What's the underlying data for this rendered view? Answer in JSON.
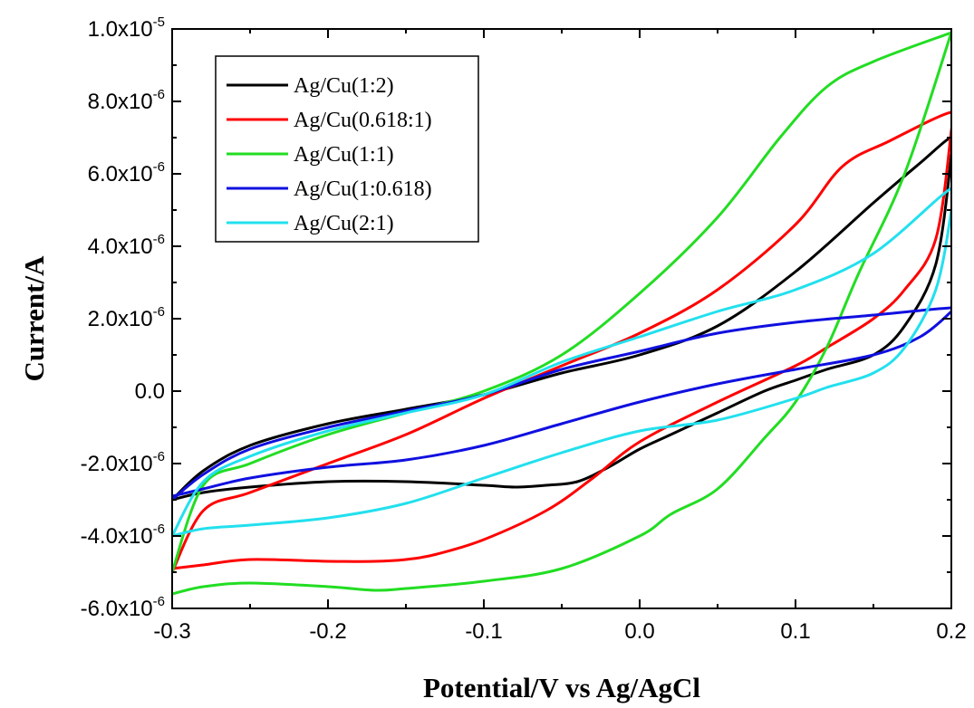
{
  "chart_data": {
    "type": "line",
    "xlabel": "Potential/V vs Ag/AgCl",
    "ylabel": "Current/A",
    "xlim": [
      -0.3,
      0.2
    ],
    "ylim": [
      -6e-06,
      1e-05
    ],
    "x_ticks": [
      {
        "value": -0.3,
        "label": "-0.3"
      },
      {
        "value": -0.2,
        "label": "-0.2"
      },
      {
        "value": -0.1,
        "label": "-0.1"
      },
      {
        "value": 0.0,
        "label": "0.0"
      },
      {
        "value": 0.1,
        "label": "0.1"
      },
      {
        "value": 0.2,
        "label": "0.2"
      }
    ],
    "y_ticks": [
      {
        "value": 1e-05,
        "mantissa": "1.0x10",
        "exp": "-5"
      },
      {
        "value": 8e-06,
        "mantissa": "8.0x10",
        "exp": "-6"
      },
      {
        "value": 6e-06,
        "mantissa": "6.0x10",
        "exp": "-6"
      },
      {
        "value": 4e-06,
        "mantissa": "4.0x10",
        "exp": "-6"
      },
      {
        "value": 2e-06,
        "mantissa": "2.0x10",
        "exp": "-6"
      },
      {
        "value": 0,
        "mantissa": "0.0",
        "exp": ""
      },
      {
        "value": -2e-06,
        "mantissa": "-2.0x10",
        "exp": "-6"
      },
      {
        "value": -4e-06,
        "mantissa": "-4.0x10",
        "exp": "-6"
      },
      {
        "value": -6e-06,
        "mantissa": "-6.0x10",
        "exp": "-6"
      }
    ],
    "legend_position": "top-left",
    "grid": false,
    "series": [
      {
        "name": "Ag/Cu(1:2)",
        "color": "#000000",
        "x": [
          -0.3,
          -0.28,
          -0.25,
          -0.2,
          -0.15,
          -0.1,
          -0.05,
          0,
          0.05,
          0.1,
          0.15,
          0.18,
          0.2,
          0.2,
          0.19,
          0.17,
          0.15,
          0.12,
          0.1,
          0.08,
          0.05,
          0.02,
          0,
          -0.02,
          -0.04,
          -0.06,
          -0.08,
          -0.1,
          -0.15,
          -0.2,
          -0.25,
          -0.28,
          -0.3
        ],
        "y": [
          -3e-06,
          -2.2e-06,
          -1.5e-06,
          -9e-07,
          -5e-07,
          -1e-07,
          5e-07,
          1e-06,
          1.8e-06,
          3.3e-06,
          5.2e-06,
          6.3e-06,
          7e-06,
          6.5e-06,
          3.5e-06,
          1.8e-06,
          1e-06,
          6e-07,
          3e-07,
          0.0,
          -6e-07,
          -1.2e-06,
          -1.6e-06,
          -2.1e-06,
          -2.5e-06,
          -2.6e-06,
          -2.65e-06,
          -2.6e-06,
          -2.5e-06,
          -2.5e-06,
          -2.65e-06,
          -2.8e-06,
          -3e-06
        ]
      },
      {
        "name": "Ag/Cu(0.618:1)",
        "color": "#ff0000",
        "x": [
          -0.3,
          -0.28,
          -0.25,
          -0.2,
          -0.15,
          -0.1,
          -0.05,
          0,
          0.05,
          0.1,
          0.13,
          0.16,
          0.2,
          0.2,
          0.19,
          0.17,
          0.15,
          0.12,
          0.1,
          0.05,
          0,
          -0.03,
          -0.06,
          -0.1,
          -0.13,
          -0.15,
          -0.17,
          -0.2,
          -0.25,
          -0.28,
          -0.3
        ],
        "y": [
          -5e-06,
          -3.3e-06,
          -2.8e-06,
          -2e-06,
          -1.2e-06,
          -2e-07,
          7e-07,
          1.6e-06,
          2.8e-06,
          4.6e-06,
          6.2e-06,
          6.9e-06,
          7.7e-06,
          7.2e-06,
          4.2e-06,
          2.8e-06,
          2e-06,
          1.2e-06,
          7e-07,
          -3e-07,
          -1.4e-06,
          -2.4e-06,
          -3.3e-06,
          -4.1e-06,
          -4.5e-06,
          -4.65e-06,
          -4.7e-06,
          -4.7e-06,
          -4.65e-06,
          -4.8e-06,
          -4.9e-06
        ]
      },
      {
        "name": "Ag/Cu(1:1)",
        "color": "#22dd22",
        "x": [
          -0.3,
          -0.28,
          -0.25,
          -0.2,
          -0.15,
          -0.1,
          -0.05,
          0,
          0.05,
          0.09,
          0.12,
          0.15,
          0.2,
          0.2,
          0.17,
          0.14,
          0.12,
          0.1,
          0.08,
          0.05,
          0.02,
          0,
          -0.05,
          -0.1,
          -0.15,
          -0.17,
          -0.2,
          -0.25,
          -0.28,
          -0.3
        ],
        "y": [
          -5e-06,
          -2.6e-06,
          -2e-06,
          -1.2e-06,
          -6e-07,
          0.0,
          1e-06,
          2.7e-06,
          4.8e-06,
          7e-06,
          8.4e-06,
          9.1e-06,
          9.9e-06,
          9.9e-06,
          6e-06,
          3.2e-06,
          1.2e-06,
          -3e-07,
          -1.3e-06,
          -2.7e-06,
          -3.4e-06,
          -4e-06,
          -4.9e-06,
          -5.25e-06,
          -5.45e-06,
          -5.5e-06,
          -5.4e-06,
          -5.3e-06,
          -5.4e-06,
          -5.6e-06
        ]
      },
      {
        "name": "Ag/Cu(1:0.618)",
        "color": "#1010e0",
        "x": [
          -0.3,
          -0.28,
          -0.25,
          -0.2,
          -0.15,
          -0.1,
          -0.05,
          0,
          0.05,
          0.1,
          0.15,
          0.2,
          0.2,
          0.18,
          0.15,
          0.1,
          0.05,
          0,
          -0.05,
          -0.1,
          -0.15,
          -0.2,
          -0.25,
          -0.28,
          -0.3
        ],
        "y": [
          -3e-06,
          -2.3e-06,
          -1.6e-06,
          -1e-06,
          -5.5e-07,
          -1e-07,
          6e-07,
          1.1e-06,
          1.6e-06,
          1.9e-06,
          2.1e-06,
          2.3e-06,
          2.2e-06,
          1.5e-06,
          1e-06,
          6e-07,
          2e-07,
          -3e-07,
          -9e-07,
          -1.5e-06,
          -1.9e-06,
          -2.1e-06,
          -2.4e-06,
          -2.7e-06,
          -2.9e-06
        ]
      },
      {
        "name": "Ag/Cu(2:1)",
        "color": "#22e0ee",
        "x": [
          -0.3,
          -0.28,
          -0.25,
          -0.2,
          -0.15,
          -0.1,
          -0.05,
          0,
          0.05,
          0.1,
          0.15,
          0.2,
          0.2,
          0.19,
          0.17,
          0.15,
          0.12,
          0.1,
          0.05,
          0,
          -0.05,
          -0.1,
          -0.15,
          -0.2,
          -0.25,
          -0.28,
          -0.3
        ],
        "y": [
          -4e-06,
          -2.5e-06,
          -1.8e-06,
          -1.1e-06,
          -6e-07,
          -1e-07,
          8e-07,
          1.5e-06,
          2.2e-06,
          2.8e-06,
          3.8e-06,
          5.6e-06,
          5e-06,
          2.8e-06,
          1.2e-06,
          5e-07,
          1e-07,
          -2e-07,
          -8e-07,
          -1.1e-06,
          -1.7e-06,
          -2.4e-06,
          -3.1e-06,
          -3.5e-06,
          -3.7e-06,
          -3.8e-06,
          -4e-06
        ]
      }
    ]
  }
}
